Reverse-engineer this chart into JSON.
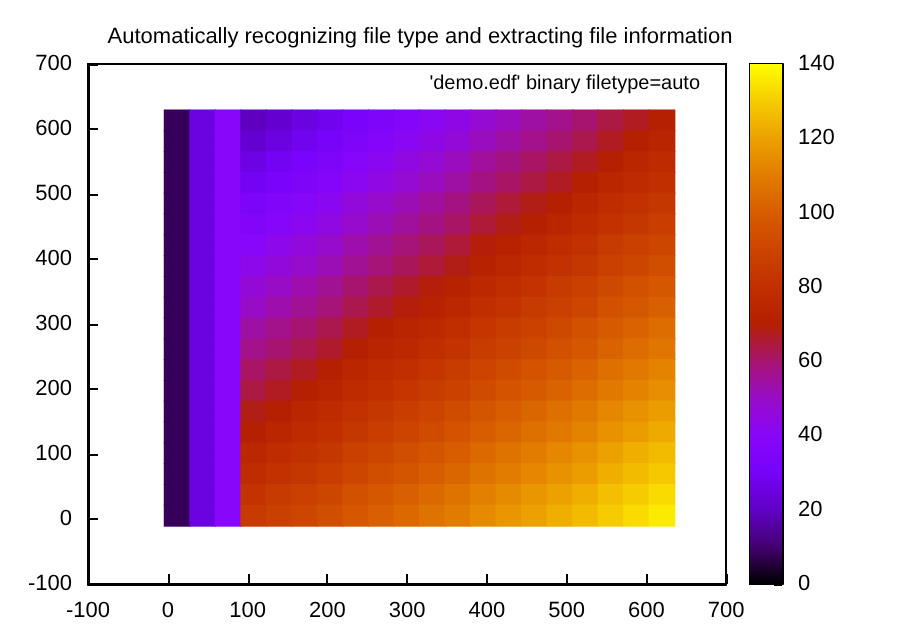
{
  "chart_data": {
    "type": "heatmap",
    "title": "Automatically recognizing file type and extracting file information",
    "annotations": [
      "'demo.edf' binary filetype=auto"
    ],
    "x": [
      11,
      43,
      75,
      107,
      139,
      171,
      203,
      235,
      267,
      299,
      331,
      363,
      395,
      427,
      459,
      491,
      523,
      555,
      587,
      619
    ],
    "y": [
      614,
      582,
      550,
      518,
      486,
      454,
      422,
      390,
      358,
      326,
      294,
      262,
      230,
      198,
      166,
      134,
      102,
      70,
      38,
      6
    ],
    "cells": [
      [
        8,
        25,
        40,
        19,
        22,
        25,
        28,
        32,
        35,
        38,
        41,
        44,
        48,
        51,
        54,
        57,
        60,
        64,
        67,
        70
      ],
      [
        8,
        25,
        40,
        22,
        25,
        28,
        31,
        35,
        38,
        41,
        44,
        47,
        51,
        54,
        57,
        60,
        63,
        67,
        70,
        73
      ],
      [
        8,
        25,
        40,
        26,
        29,
        32,
        35,
        39,
        42,
        45,
        48,
        51,
        55,
        58,
        61,
        64,
        67,
        71,
        74,
        77
      ],
      [
        8,
        25,
        40,
        29,
        32,
        35,
        38,
        42,
        45,
        48,
        51,
        54,
        58,
        61,
        64,
        67,
        70,
        74,
        77,
        80
      ],
      [
        8,
        25,
        40,
        33,
        36,
        39,
        42,
        46,
        49,
        52,
        55,
        58,
        62,
        65,
        68,
        71,
        74,
        78,
        81,
        84
      ],
      [
        8,
        25,
        40,
        36,
        39,
        42,
        45,
        49,
        52,
        55,
        58,
        61,
        65,
        68,
        71,
        74,
        77,
        81,
        84,
        87
      ],
      [
        8,
        25,
        40,
        40,
        43,
        46,
        49,
        53,
        56,
        59,
        62,
        65,
        69,
        72,
        75,
        78,
        81,
        85,
        88,
        91
      ],
      [
        8,
        25,
        40,
        43,
        46,
        49,
        52,
        56,
        59,
        62,
        65,
        68,
        72,
        75,
        78,
        81,
        84,
        88,
        91,
        94
      ],
      [
        8,
        25,
        40,
        47,
        50,
        53,
        56,
        60,
        63,
        66,
        69,
        72,
        76,
        79,
        82,
        85,
        88,
        92,
        95,
        98
      ],
      [
        8,
        25,
        40,
        50,
        53,
        56,
        59,
        63,
        66,
        69,
        72,
        75,
        79,
        82,
        85,
        88,
        91,
        95,
        98,
        101
      ],
      [
        8,
        25,
        40,
        54,
        57,
        60,
        63,
        67,
        70,
        73,
        76,
        79,
        83,
        86,
        89,
        92,
        95,
        99,
        102,
        105
      ],
      [
        8,
        25,
        40,
        57,
        60,
        63,
        66,
        70,
        73,
        76,
        79,
        82,
        86,
        89,
        92,
        95,
        98,
        102,
        105,
        108
      ],
      [
        8,
        25,
        40,
        61,
        64,
        67,
        70,
        74,
        77,
        80,
        83,
        86,
        90,
        93,
        96,
        99,
        102,
        106,
        109,
        112
      ],
      [
        8,
        25,
        40,
        64,
        67,
        70,
        73,
        77,
        80,
        83,
        86,
        89,
        93,
        96,
        99,
        102,
        105,
        109,
        112,
        115
      ],
      [
        8,
        25,
        40,
        68,
        71,
        74,
        77,
        81,
        84,
        87,
        90,
        93,
        97,
        100,
        103,
        106,
        109,
        113,
        116,
        119
      ],
      [
        8,
        25,
        40,
        71,
        74,
        77,
        80,
        84,
        87,
        90,
        93,
        96,
        100,
        103,
        106,
        109,
        112,
        116,
        119,
        122
      ],
      [
        8,
        25,
        40,
        75,
        78,
        81,
        84,
        88,
        91,
        94,
        97,
        100,
        104,
        107,
        110,
        113,
        116,
        120,
        123,
        126
      ],
      [
        8,
        25,
        40,
        78,
        81,
        84,
        87,
        91,
        94,
        97,
        100,
        103,
        107,
        110,
        113,
        116,
        119,
        123,
        126,
        129
      ],
      [
        8,
        25,
        40,
        82,
        85,
        88,
        91,
        95,
        98,
        101,
        104,
        107,
        111,
        114,
        117,
        120,
        123,
        127,
        130,
        133
      ],
      [
        8,
        25,
        40,
        85,
        88,
        91,
        94,
        98,
        101,
        104,
        107,
        110,
        114,
        117,
        120,
        123,
        126,
        130,
        133,
        136
      ]
    ],
    "xlim": [
      -100,
      700
    ],
    "xticks": [
      -100,
      0,
      100,
      200,
      300,
      400,
      500,
      600,
      700
    ],
    "ylim": [
      -100,
      700
    ],
    "yticks": [
      -100,
      0,
      100,
      200,
      300,
      400,
      500,
      600,
      700
    ],
    "clim": [
      0,
      140
    ],
    "cticks": [
      0,
      20,
      40,
      60,
      80,
      100,
      120,
      140
    ]
  }
}
